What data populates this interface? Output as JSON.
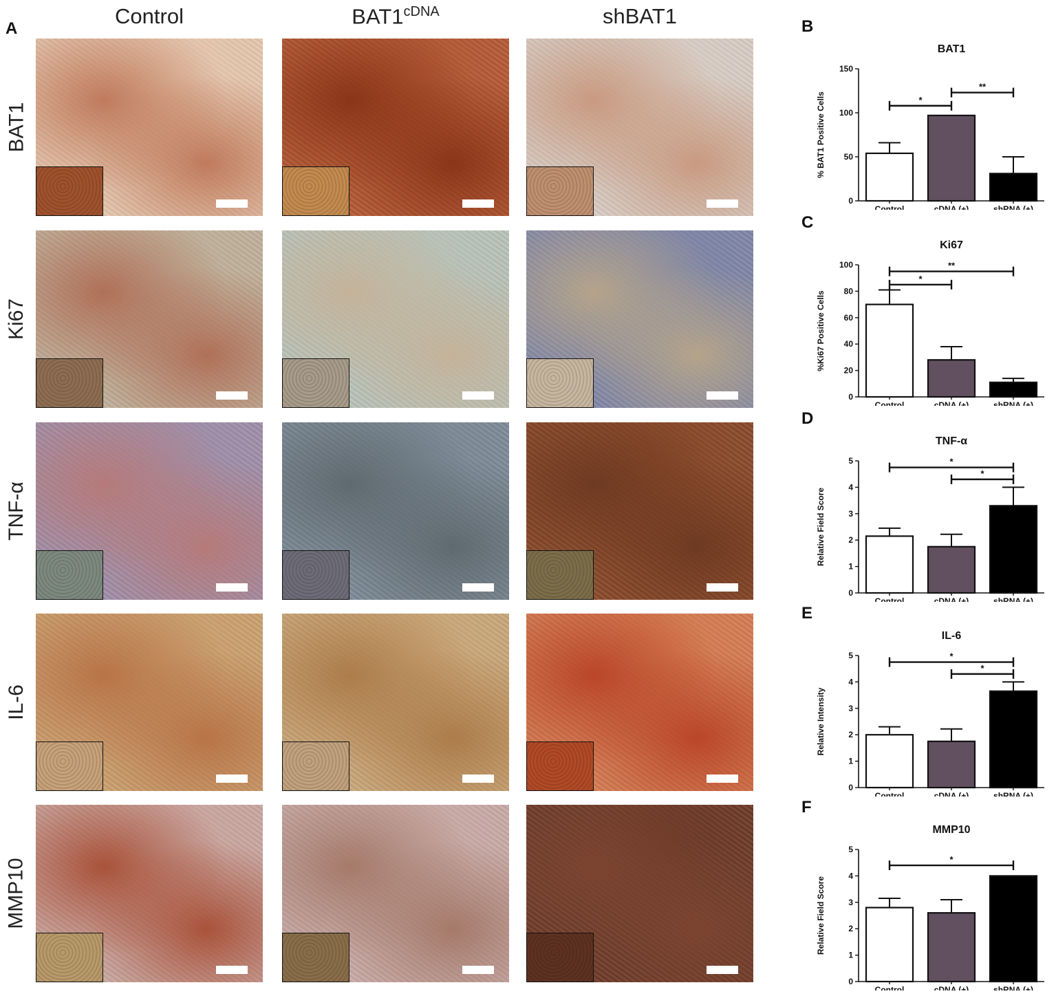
{
  "panel_a": {
    "letter": "A",
    "columns": [
      {
        "title": "Control",
        "sup": ""
      },
      {
        "title": "BAT1",
        "sup": "cDNA"
      },
      {
        "title": "shBAT1",
        "sup": ""
      }
    ],
    "rows": [
      "BAT1",
      "Ki67",
      "TNF-α",
      "IL-6",
      "MMP10"
    ],
    "tile_colors": [
      [
        [
          "#e4c6ad",
          "#c07a5c",
          "#a0522d"
        ],
        [
          "#b45a36",
          "#8a3518",
          "#c48b50"
        ],
        [
          "#d7ccc4",
          "#c99a80",
          "#c09070"
        ]
      ],
      [
        [
          "#bfb09a",
          "#b07058",
          "#8e6e52"
        ],
        [
          "#b8c2b8",
          "#c4b39a",
          "#a89c8a"
        ],
        [
          "#7f86a6",
          "#b5a48a",
          "#c8b7a0"
        ]
      ],
      [
        [
          "#9f8ea8",
          "#b67a7a",
          "#7e8a80"
        ],
        [
          "#7d8a96",
          "#5f6a70",
          "#6e6c78"
        ],
        [
          "#8a4a2a",
          "#6e3a22",
          "#7d6e4a"
        ]
      ],
      [
        [
          "#caa070",
          "#b87446",
          "#c8a27a"
        ],
        [
          "#c9a77a",
          "#ad7c4a",
          "#c2a27e"
        ],
        [
          "#d47c52",
          "#b94628",
          "#b24a26"
        ]
      ],
      [
        [
          "#c9a6a0",
          "#a9523a",
          "#b99a6a"
        ],
        [
          "#c8aaa6",
          "#a57a6a",
          "#8a6e4a"
        ],
        [
          "#6e3a28",
          "#7a4430",
          "#5e3222"
        ]
      ]
    ]
  },
  "charts": [
    {
      "letter": "B",
      "type": "bar",
      "title": "BAT1",
      "categories": [
        "Control",
        "cDNA (+)",
        "shRNA (+)"
      ],
      "values": [
        54,
        97,
        31
      ],
      "errors": [
        12,
        0,
        19
      ],
      "bar_colors": [
        "#ffffff",
        "#625060",
        "#000000"
      ],
      "ylabel": "% BAT1 Positive Cells",
      "ylim": [
        0,
        150
      ],
      "yticks": [
        0,
        50,
        100,
        150
      ],
      "significance": [
        {
          "from": 0,
          "to": 1,
          "y": 108,
          "label": "*"
        },
        {
          "from": 1,
          "to": 2,
          "y": 123,
          "label": "**"
        }
      ]
    },
    {
      "letter": "C",
      "type": "bar",
      "title": "Ki67",
      "categories": [
        "Control",
        "cDNA (+)",
        "shRNA (+)"
      ],
      "values": [
        70,
        28,
        11
      ],
      "errors": [
        11,
        10,
        3
      ],
      "bar_colors": [
        "#ffffff",
        "#625060",
        "#000000"
      ],
      "ylabel": "%Ki67 Positive Cells",
      "ylim": [
        0,
        100
      ],
      "yticks": [
        0,
        20,
        40,
        60,
        80,
        100
      ],
      "significance": [
        {
          "from": 0,
          "to": 1,
          "y": 85,
          "label": "*"
        },
        {
          "from": 0,
          "to": 2,
          "y": 95,
          "label": "**"
        }
      ]
    },
    {
      "letter": "D",
      "type": "bar",
      "title": "TNF-α",
      "categories": [
        "Control",
        "cDNA (+)",
        "shRNA (+)"
      ],
      "values": [
        2.15,
        1.75,
        3.3
      ],
      "errors": [
        0.3,
        0.47,
        0.7
      ],
      "bar_colors": [
        "#ffffff",
        "#625060",
        "#000000"
      ],
      "ylabel": "Relative Field Score",
      "ylim": [
        0,
        5
      ],
      "yticks": [
        0,
        1,
        2,
        3,
        4,
        5
      ],
      "significance": [
        {
          "from": 0,
          "to": 2,
          "y": 4.75,
          "label": "*"
        },
        {
          "from": 1,
          "to": 2,
          "y": 4.3,
          "label": "*"
        }
      ]
    },
    {
      "letter": "E",
      "type": "bar",
      "title": "IL-6",
      "categories": [
        "Control",
        "cDNA (+)",
        "shRNA (+)"
      ],
      "values": [
        2.0,
        1.75,
        3.65
      ],
      "errors": [
        0.3,
        0.47,
        0.35
      ],
      "bar_colors": [
        "#ffffff",
        "#625060",
        "#000000"
      ],
      "ylabel": "Relative Intensity",
      "ylim": [
        0,
        5
      ],
      "yticks": [
        0,
        1,
        2,
        3,
        4,
        5
      ],
      "significance": [
        {
          "from": 0,
          "to": 2,
          "y": 4.75,
          "label": "*"
        },
        {
          "from": 1,
          "to": 2,
          "y": 4.3,
          "label": "*"
        }
      ]
    },
    {
      "letter": "F",
      "type": "bar",
      "title": "MMP10",
      "categories": [
        "Control",
        "cDNA (+)",
        "shRNA (+)"
      ],
      "values": [
        2.8,
        2.6,
        4.0
      ],
      "errors": [
        0.35,
        0.5,
        0
      ],
      "bar_colors": [
        "#ffffff",
        "#625060",
        "#000000"
      ],
      "ylabel": "Relative Field Score",
      "ylim": [
        0,
        5
      ],
      "yticks": [
        0,
        1,
        2,
        3,
        4,
        5
      ],
      "significance": [
        {
          "from": 0,
          "to": 2,
          "y": 4.4,
          "label": "*"
        }
      ]
    }
  ]
}
